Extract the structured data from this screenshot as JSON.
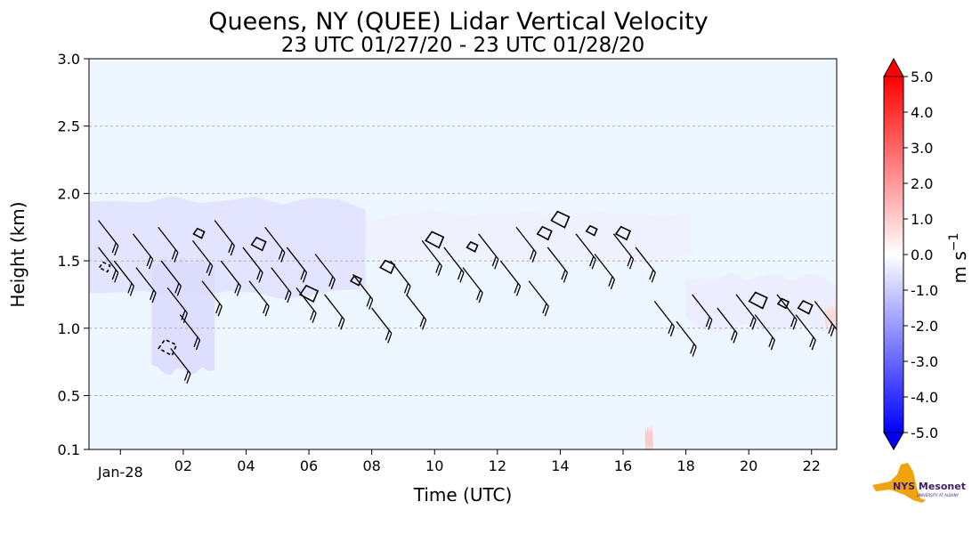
{
  "chart_data": {
    "type": "heatmap",
    "title": "Queens, NY (QUEE) Lidar Vertical Velocity",
    "subtitle": "23 UTC 01/27/20 - 23 UTC 01/28/20",
    "xlabel": "Time (UTC)",
    "ylabel": "Height (km)",
    "xlim": [
      23,
      46.8
    ],
    "ylim": [
      0.1,
      3.0
    ],
    "x_ticks": [
      {
        "value": 24,
        "label": "Jan-28"
      },
      {
        "value": 26,
        "label": "02"
      },
      {
        "value": 28,
        "label": "04"
      },
      {
        "value": 30,
        "label": "06"
      },
      {
        "value": 32,
        "label": "08"
      },
      {
        "value": 34,
        "label": "10"
      },
      {
        "value": 36,
        "label": "12"
      },
      {
        "value": 38,
        "label": "14"
      },
      {
        "value": 40,
        "label": "16"
      },
      {
        "value": 42,
        "label": "18"
      },
      {
        "value": 44,
        "label": "20"
      },
      {
        "value": 46,
        "label": "22"
      }
    ],
    "y_ticks": [
      {
        "value": 0.1,
        "label": "0.1"
      },
      {
        "value": 0.5,
        "label": "0.5"
      },
      {
        "value": 1.0,
        "label": "1.0"
      },
      {
        "value": 1.5,
        "label": "1.5"
      },
      {
        "value": 2.0,
        "label": "2.0"
      },
      {
        "value": 2.5,
        "label": "2.5"
      },
      {
        "value": 3.0,
        "label": "3.0"
      }
    ],
    "grid": "horizontal dashed",
    "colorbar": {
      "label": "m s",
      "label_superscript": "−1",
      "range": [
        -5.0,
        5.0
      ],
      "ticks": [
        "5.0",
        "4.0",
        "3.0",
        "2.0",
        "1.0",
        "0.0",
        "-1.0",
        "-2.0",
        "-3.0",
        "-4.0",
        "-5.0"
      ],
      "colors": [
        "#0000ff",
        "#ffffff",
        "#ff0000"
      ]
    },
    "background_color": "#eef6ff",
    "velocity_bands": [
      {
        "x0": 23.0,
        "x1": 31.8,
        "y_top": 1.95,
        "y_bottom": 1.25,
        "value": -0.6
      },
      {
        "x0": 25.0,
        "x1": 27.0,
        "y_top": 1.5,
        "y_bottom": 0.68,
        "value": -0.7
      },
      {
        "x0": 31.8,
        "x1": 42.2,
        "y_top": 1.85,
        "y_bottom": 1.5,
        "value": -0.3
      },
      {
        "x0": 42.0,
        "x1": 46.8,
        "y_top": 1.38,
        "y_bottom": 1.0,
        "value": -0.4
      },
      {
        "x0": 46.4,
        "x1": 46.8,
        "y_top": 1.15,
        "y_bottom": 1.02,
        "value": 0.8
      },
      {
        "x0": 40.7,
        "x1": 40.95,
        "y_top": 0.25,
        "y_bottom": 0.1,
        "value": 1.2
      }
    ],
    "wind_barbs": [
      {
        "x": 23.3,
        "y": 1.8
      },
      {
        "x": 23.3,
        "y": 1.6
      },
      {
        "x": 23.8,
        "y": 1.5
      },
      {
        "x": 24.4,
        "y": 1.7
      },
      {
        "x": 24.5,
        "y": 1.45
      },
      {
        "x": 25.2,
        "y": 1.75
      },
      {
        "x": 25.3,
        "y": 1.5
      },
      {
        "x": 25.5,
        "y": 1.3
      },
      {
        "x": 25.6,
        "y": 0.85
      },
      {
        "x": 25.9,
        "y": 1.1
      },
      {
        "x": 26.3,
        "y": 1.65
      },
      {
        "x": 26.6,
        "y": 1.35
      },
      {
        "x": 27.0,
        "y": 1.8
      },
      {
        "x": 27.2,
        "y": 1.5
      },
      {
        "x": 27.9,
        "y": 1.6
      },
      {
        "x": 28.1,
        "y": 1.35
      },
      {
        "x": 28.6,
        "y": 1.75
      },
      {
        "x": 28.8,
        "y": 1.45
      },
      {
        "x": 29.3,
        "y": 1.6
      },
      {
        "x": 29.6,
        "y": 1.3
      },
      {
        "x": 30.2,
        "y": 1.55
      },
      {
        "x": 30.5,
        "y": 1.25
      },
      {
        "x": 31.4,
        "y": 1.4
      },
      {
        "x": 32.0,
        "y": 1.15
      },
      {
        "x": 32.6,
        "y": 1.5
      },
      {
        "x": 33.1,
        "y": 1.25
      },
      {
        "x": 33.6,
        "y": 1.65
      },
      {
        "x": 34.3,
        "y": 1.6
      },
      {
        "x": 34.9,
        "y": 1.45
      },
      {
        "x": 35.4,
        "y": 1.7
      },
      {
        "x": 36.1,
        "y": 1.5
      },
      {
        "x": 36.6,
        "y": 1.75
      },
      {
        "x": 37.0,
        "y": 1.35
      },
      {
        "x": 37.6,
        "y": 1.6
      },
      {
        "x": 38.5,
        "y": 1.7
      },
      {
        "x": 39.1,
        "y": 1.55
      },
      {
        "x": 39.7,
        "y": 1.7
      },
      {
        "x": 40.4,
        "y": 1.6
      },
      {
        "x": 41.0,
        "y": 1.2
      },
      {
        "x": 41.7,
        "y": 1.05
      },
      {
        "x": 42.2,
        "y": 1.25
      },
      {
        "x": 43.0,
        "y": 1.15
      },
      {
        "x": 43.6,
        "y": 1.25
      },
      {
        "x": 44.2,
        "y": 1.1
      },
      {
        "x": 44.9,
        "y": 1.25
      },
      {
        "x": 45.5,
        "y": 1.1
      },
      {
        "x": 46.1,
        "y": 1.2
      },
      {
        "x": 46.6,
        "y": 1.05
      }
    ],
    "contours": [
      {
        "x": 26.5,
        "y": 1.7,
        "style": "solid"
      },
      {
        "x": 28.4,
        "y": 1.62,
        "style": "solid"
      },
      {
        "x": 30.0,
        "y": 1.25,
        "style": "solid"
      },
      {
        "x": 31.5,
        "y": 1.35,
        "style": "solid"
      },
      {
        "x": 32.5,
        "y": 1.45,
        "style": "solid"
      },
      {
        "x": 34.0,
        "y": 1.65,
        "style": "solid"
      },
      {
        "x": 35.2,
        "y": 1.6,
        "style": "solid"
      },
      {
        "x": 37.5,
        "y": 1.7,
        "style": "solid"
      },
      {
        "x": 38.0,
        "y": 1.8,
        "style": "solid"
      },
      {
        "x": 39.0,
        "y": 1.72,
        "style": "solid"
      },
      {
        "x": 40.0,
        "y": 1.7,
        "style": "solid"
      },
      {
        "x": 44.3,
        "y": 1.2,
        "style": "solid"
      },
      {
        "x": 45.1,
        "y": 1.18,
        "style": "solid"
      },
      {
        "x": 45.8,
        "y": 1.15,
        "style": "solid"
      },
      {
        "x": 25.5,
        "y": 0.85,
        "style": "dashed"
      },
      {
        "x": 23.5,
        "y": 1.45,
        "style": "dashed"
      }
    ]
  },
  "logo": {
    "text": "NYS Mesonet",
    "subtext": "UNIVERSITY AT ALBANY",
    "colors": [
      "#f0a30a",
      "#3a1f6b"
    ]
  }
}
